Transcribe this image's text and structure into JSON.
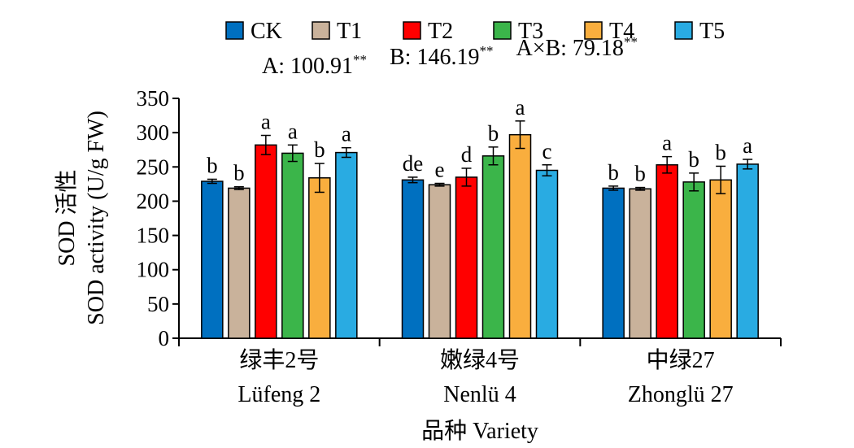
{
  "chart_data": {
    "type": "bar",
    "categories": [
      {
        "cn": "绿丰2号",
        "en": "Lüfeng 2"
      },
      {
        "cn": "嫩绿4号",
        "en": "Nenlü 4"
      },
      {
        "cn": "中绿27",
        "en": "Zhonglü 27"
      }
    ],
    "series": [
      {
        "name": "CK",
        "color": "#0070C0",
        "values": [
          229,
          231,
          219
        ],
        "errors": [
          3,
          4,
          3
        ],
        "letters": [
          "b",
          "de",
          "b"
        ]
      },
      {
        "name": "T1",
        "color": "#C9B29B",
        "values": [
          219,
          224,
          218
        ],
        "errors": [
          2,
          2,
          2
        ],
        "letters": [
          "b",
          "e",
          "b"
        ]
      },
      {
        "name": "T2",
        "color": "#FF0000",
        "values": [
          282,
          235,
          253
        ],
        "errors": [
          14,
          13,
          12
        ],
        "letters": [
          "a",
          "d",
          "a"
        ]
      },
      {
        "name": "T3",
        "color": "#3BB54A",
        "values": [
          270,
          266,
          228
        ],
        "errors": [
          12,
          13,
          13
        ],
        "letters": [
          "a",
          "b",
          "b"
        ]
      },
      {
        "name": "T4",
        "color": "#F9AE3E",
        "values": [
          234,
          297,
          231
        ],
        "errors": [
          21,
          20,
          20
        ],
        "letters": [
          "b",
          "a",
          "b"
        ]
      },
      {
        "name": "T5",
        "color": "#29ABE2",
        "values": [
          271,
          245,
          254
        ],
        "errors": [
          7,
          8,
          7
        ],
        "letters": [
          "a",
          "c",
          "a"
        ]
      }
    ],
    "stats": [
      {
        "label": "A: 100.91",
        "sig": "**"
      },
      {
        "label": "B: 146.19",
        "sig": "**"
      },
      {
        "label": "A×B: 79.18",
        "sig": "**"
      }
    ],
    "ylabel_cn": "SOD 活性",
    "ylabel_en": "SOD activity (U/g FW)",
    "xlabel": "品种 Variety",
    "ylim": [
      0,
      350
    ],
    "yticks": [
      0,
      50,
      100,
      150,
      200,
      250,
      300,
      350
    ]
  }
}
